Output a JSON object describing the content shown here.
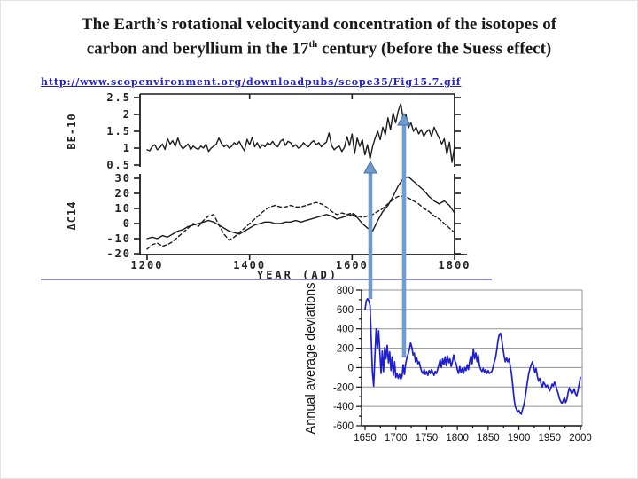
{
  "slide": {
    "title_line1": "The Earth’s rotational velocityand concentration of the isotopes of",
    "title_line2_pre": "carbon and beryllium in the 17",
    "title_line2_sup": "th",
    "title_line2_post": " century (before the Suess effect)",
    "link_text": "http://www.scopenvironment.org/downloadpubs/scope35/Fig15.7.gif"
  },
  "colors": {
    "title_ink": "#1a1a1a",
    "link_blue": "#2222c8",
    "scan_ink": "#1c1c1c",
    "deviation_line_blue": "#1f1fd0",
    "grid_gray": "#909090",
    "arrow_blue": "#6f9bd1",
    "arrow_outline": "#47709e",
    "separator_purple": "#8a8ab8"
  },
  "annotations": {
    "arrows": [
      {
        "id": "left-arrow",
        "direction": "up"
      },
      {
        "id": "right-arrow",
        "direction": "up"
      }
    ]
  },
  "chart_data": [
    {
      "id": "isotopes",
      "type": "line",
      "xlabel": "YEAR (AD)",
      "xlim": [
        1200,
        1800
      ],
      "x_ticks": [
        "1200",
        "1400",
        "1600",
        "1800"
      ],
      "panels": [
        {
          "ylabel": "BE-10",
          "ylim": [
            0.5,
            2.5
          ],
          "y_ticks": [
            "2.5",
            "2",
            "1.5",
            "1",
            "0.5"
          ],
          "series": [
            {
              "name": "Be-10 concentration",
              "line_style": "solid",
              "x_start": 1200,
              "x_step": 5,
              "values": [
                0.95,
                0.92,
                1.05,
                1.1,
                0.95,
                1.02,
                1.12,
                0.96,
                1.28,
                1.12,
                1.22,
                1.05,
                1.3,
                1.08,
                0.98,
                1.05,
                1.12,
                0.95,
                1.06,
                1.0,
                0.96,
                1.06,
                1.0,
                1.12,
                0.9,
                1.0,
                1.06,
                1.12,
                1.3,
                1.14,
                1.04,
                1.1,
                1.0,
                1.05,
                1.16,
                1.1,
                1.2,
                1.04,
                0.92,
                1.26,
                1.1,
                1.32,
                1.04,
                1.16,
                1.0,
                1.1,
                1.04,
                1.16,
                1.1,
                1.2,
                1.08,
                1.04,
                1.2,
                1.26,
                1.08,
                1.2,
                1.16,
                1.04,
                1.1,
                1.0,
                1.04,
                1.16,
                1.08,
                1.04,
                1.16,
                1.22,
                1.1,
                1.16,
                1.04,
                1.12,
                1.18,
                1.45,
                1.08,
                0.95,
                1.02,
                1.06,
                0.9,
                1.02,
                1.34,
                1.08,
                1.42,
                0.84,
                1.3,
                1.05,
                1.25,
                0.8,
                1.1,
                0.68,
                1.05,
                1.3,
                1.5,
                1.25,
                1.62,
                1.4,
                1.9,
                1.55,
                2.05,
                1.75,
                2.1,
                2.32,
                1.85,
                2.0,
                1.6,
                1.75,
                1.5,
                1.62,
                1.42,
                1.55,
                1.35,
                1.48,
                1.55,
                1.35,
                1.62,
                1.45,
                1.3,
                1.12,
                1.28,
                0.82,
                1.18,
                0.58,
                1.05
              ]
            }
          ]
        },
        {
          "ylabel": "ΔC14",
          "ylim": [
            -20,
            30
          ],
          "y_ticks": [
            "30",
            "20",
            "10",
            "0",
            "-10",
            "-20"
          ],
          "series": [
            {
              "name": "C14 solid",
              "line_style": "solid",
              "x_start": 1200,
              "x_step": 10,
              "values": [
                -10,
                -9,
                -10,
                -8,
                -9,
                -7,
                -5,
                -4,
                -2,
                -1,
                0,
                1,
                2,
                1,
                -1,
                -3,
                -5,
                -6,
                -7,
                -5,
                -3,
                -1,
                0,
                1,
                1,
                0,
                0,
                1,
                1,
                2,
                1,
                2,
                3,
                4,
                5,
                6,
                5,
                3,
                4,
                5,
                6,
                4,
                0,
                -3,
                -5,
                2,
                8,
                12,
                18,
                25,
                30,
                31,
                28,
                25,
                22,
                18,
                15,
                13,
                15,
                12,
                7
              ]
            },
            {
              "name": "C14 dashed",
              "line_style": "dashed",
              "x_start": 1200,
              "x_step": 10,
              "values": [
                -17,
                -14,
                -13,
                -15,
                -14,
                -12,
                -9,
                -6,
                -3,
                0,
                -2,
                2,
                5,
                6,
                -1,
                -7,
                -11,
                -9,
                -6,
                -3,
                0,
                3,
                6,
                9,
                11,
                12,
                11,
                11,
                12,
                11,
                11,
                12,
                13,
                14,
                13,
                11,
                8,
                6,
                7,
                6,
                7,
                5,
                4,
                5,
                6,
                8,
                10,
                13,
                16,
                18,
                18,
                17,
                15,
                13,
                10,
                8,
                5,
                3,
                0,
                -3,
                -6
              ]
            }
          ]
        }
      ]
    },
    {
      "id": "rotation",
      "type": "line",
      "ylabel": "Annual average deviations",
      "ylim": [
        -600,
        800
      ],
      "y_ticks": [
        800,
        600,
        400,
        200,
        0,
        -200,
        -400,
        -600
      ],
      "xlim": [
        1650,
        2000
      ],
      "x_ticks": [
        1650,
        1700,
        1750,
        1800,
        1850,
        1900,
        1950,
        2000
      ],
      "grid": "horizontal",
      "legend": "none",
      "series": [
        {
          "name": "annual average deviations",
          "color": "#1f1fd0",
          "points": [
            [
              1650,
              600
            ],
            [
              1652,
              690
            ],
            [
              1654,
              710
            ],
            [
              1656,
              690
            ],
            [
              1658,
              640
            ],
            [
              1660,
              300
            ],
            [
              1662,
              -50
            ],
            [
              1664,
              -190
            ],
            [
              1666,
              120
            ],
            [
              1668,
              400
            ],
            [
              1670,
              200
            ],
            [
              1672,
              380
            ],
            [
              1674,
              150
            ],
            [
              1676,
              -60
            ],
            [
              1678,
              170
            ],
            [
              1680,
              -40
            ],
            [
              1682,
              210
            ],
            [
              1684,
              90
            ],
            [
              1686,
              230
            ],
            [
              1688,
              50
            ],
            [
              1690,
              160
            ],
            [
              1692,
              -30
            ],
            [
              1694,
              110
            ],
            [
              1696,
              -80
            ],
            [
              1698,
              60
            ],
            [
              1700,
              -100
            ],
            [
              1702,
              -60
            ],
            [
              1704,
              -110
            ],
            [
              1706,
              -70
            ],
            [
              1708,
              -120
            ],
            [
              1710,
              -90
            ],
            [
              1712,
              30
            ],
            [
              1714,
              -70
            ],
            [
              1716,
              40
            ],
            [
              1718,
              100
            ],
            [
              1720,
              140
            ],
            [
              1722,
              190
            ],
            [
              1724,
              255
            ],
            [
              1726,
              210
            ],
            [
              1728,
              130
            ],
            [
              1730,
              150
            ],
            [
              1732,
              60
            ],
            [
              1734,
              100
            ],
            [
              1736,
              40
            ],
            [
              1738,
              60
            ],
            [
              1740,
              0
            ],
            [
              1742,
              -40
            ],
            [
              1744,
              -60
            ],
            [
              1746,
              -20
            ],
            [
              1748,
              -70
            ],
            [
              1750,
              -40
            ],
            [
              1752,
              -80
            ],
            [
              1754,
              -30
            ],
            [
              1756,
              -60
            ],
            [
              1758,
              -20
            ],
            [
              1760,
              -50
            ],
            [
              1762,
              -80
            ],
            [
              1764,
              -40
            ],
            [
              1766,
              -60
            ],
            [
              1768,
              -20
            ],
            [
              1770,
              30
            ],
            [
              1772,
              80
            ],
            [
              1774,
              0
            ],
            [
              1776,
              90
            ],
            [
              1778,
              30
            ],
            [
              1780,
              110
            ],
            [
              1782,
              20
            ],
            [
              1784,
              120
            ],
            [
              1786,
              50
            ],
            [
              1788,
              90
            ],
            [
              1790,
              10
            ],
            [
              1792,
              60
            ],
            [
              1794,
              130
            ],
            [
              1796,
              70
            ],
            [
              1798,
              40
            ],
            [
              1800,
              -20
            ],
            [
              1802,
              -60
            ],
            [
              1804,
              10
            ],
            [
              1806,
              -50
            ],
            [
              1808,
              -10
            ],
            [
              1810,
              -60
            ],
            [
              1812,
              0
            ],
            [
              1814,
              -30
            ],
            [
              1816,
              30
            ],
            [
              1818,
              -20
            ],
            [
              1820,
              60
            ],
            [
              1822,
              120
            ],
            [
              1824,
              40
            ],
            [
              1826,
              190
            ],
            [
              1828,
              90
            ],
            [
              1830,
              150
            ],
            [
              1832,
              60
            ],
            [
              1834,
              130
            ],
            [
              1836,
              20
            ],
            [
              1838,
              -20
            ],
            [
              1840,
              -40
            ],
            [
              1842,
              -10
            ],
            [
              1844,
              -50
            ],
            [
              1846,
              -20
            ],
            [
              1848,
              -60
            ],
            [
              1850,
              -30
            ],
            [
              1852,
              -60
            ],
            [
              1854,
              -50
            ],
            [
              1856,
              -40
            ],
            [
              1858,
              0
            ],
            [
              1860,
              60
            ],
            [
              1862,
              100
            ],
            [
              1864,
              180
            ],
            [
              1866,
              280
            ],
            [
              1868,
              340
            ],
            [
              1870,
              355
            ],
            [
              1872,
              300
            ],
            [
              1874,
              200
            ],
            [
              1876,
              120
            ],
            [
              1878,
              60
            ],
            [
              1880,
              100
            ],
            [
              1882,
              60
            ],
            [
              1884,
              90
            ],
            [
              1886,
              10
            ],
            [
              1888,
              -60
            ],
            [
              1890,
              -180
            ],
            [
              1892,
              -310
            ],
            [
              1894,
              -400
            ],
            [
              1896,
              -430
            ],
            [
              1898,
              -460
            ],
            [
              1900,
              -440
            ],
            [
              1902,
              -470
            ],
            [
              1904,
              -480
            ],
            [
              1906,
              -430
            ],
            [
              1908,
              -390
            ],
            [
              1910,
              -320
            ],
            [
              1912,
              -230
            ],
            [
              1914,
              -140
            ],
            [
              1916,
              -60
            ],
            [
              1918,
              -10
            ],
            [
              1920,
              30
            ],
            [
              1922,
              60
            ],
            [
              1924,
              10
            ],
            [
              1926,
              -50
            ],
            [
              1928,
              -10
            ],
            [
              1930,
              -90
            ],
            [
              1932,
              -140
            ],
            [
              1934,
              -110
            ],
            [
              1936,
              -170
            ],
            [
              1938,
              -200
            ],
            [
              1940,
              -150
            ],
            [
              1942,
              -170
            ],
            [
              1944,
              -200
            ],
            [
              1946,
              -180
            ],
            [
              1948,
              -210
            ],
            [
              1950,
              -240
            ],
            [
              1952,
              -210
            ],
            [
              1954,
              -170
            ],
            [
              1956,
              -190
            ],
            [
              1958,
              -150
            ],
            [
              1960,
              -180
            ],
            [
              1962,
              -230
            ],
            [
              1964,
              -270
            ],
            [
              1966,
              -320
            ],
            [
              1968,
              -350
            ],
            [
              1970,
              -370
            ],
            [
              1972,
              -340
            ],
            [
              1974,
              -310
            ],
            [
              1976,
              -360
            ],
            [
              1978,
              -330
            ],
            [
              1980,
              -260
            ],
            [
              1982,
              -210
            ],
            [
              1984,
              -240
            ],
            [
              1986,
              -270
            ],
            [
              1988,
              -250
            ],
            [
              1990,
              -220
            ],
            [
              1992,
              -270
            ],
            [
              1994,
              -290
            ],
            [
              1996,
              -240
            ],
            [
              1998,
              -170
            ],
            [
              2000,
              -100
            ]
          ]
        }
      ]
    }
  ]
}
